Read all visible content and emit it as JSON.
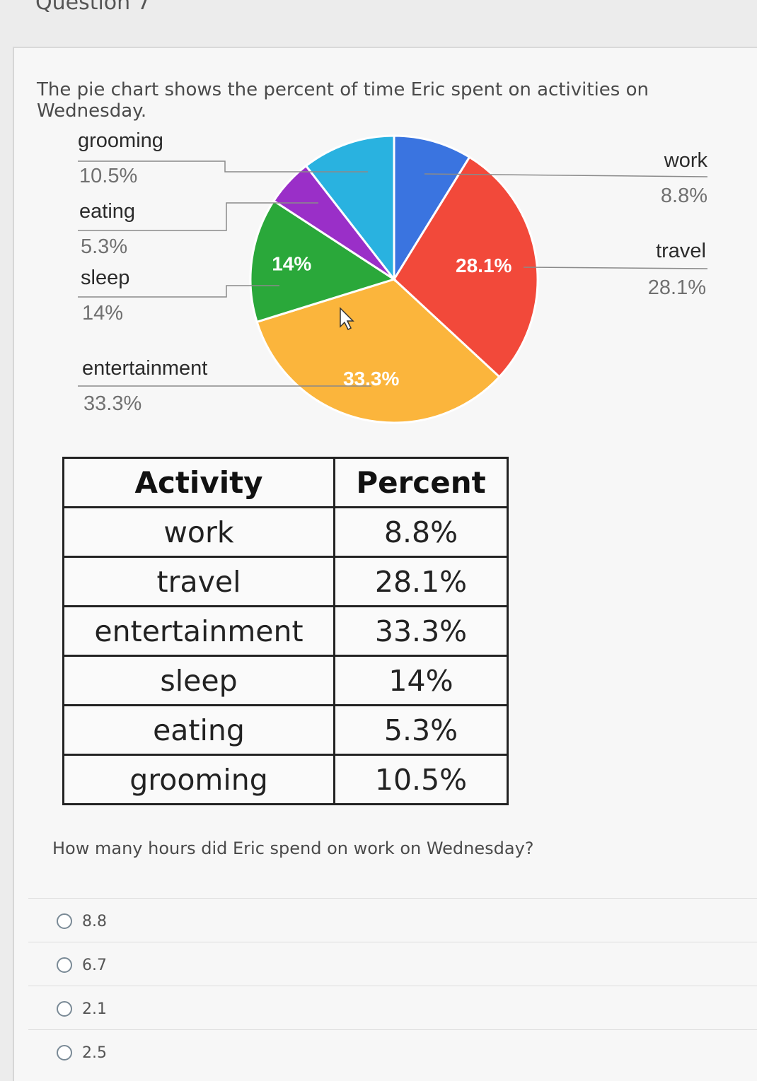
{
  "question_header": "Question 7",
  "prompt": "The pie chart shows the percent of time Eric spent on activities on Wednesday.",
  "chart_data": {
    "type": "pie",
    "slices": [
      {
        "name": "work",
        "value": 8.8,
        "label": "8.8%",
        "color": "#3a74e0"
      },
      {
        "name": "travel",
        "value": 28.1,
        "label": "28.1%",
        "color": "#f2493a"
      },
      {
        "name": "entertainment",
        "value": 33.3,
        "label": "33.3%",
        "color": "#fbb53c"
      },
      {
        "name": "sleep",
        "value": 14,
        "label": "14%",
        "color": "#2aa83a"
      },
      {
        "name": "eating",
        "value": 5.3,
        "label": "5.3%",
        "color": "#9a2fc8"
      },
      {
        "name": "grooming",
        "value": 10.5,
        "label": "10.5%",
        "color": "#29b2e0"
      }
    ],
    "inner_labels": [
      "28.1%",
      "33.3%",
      "14%"
    ],
    "legend": {
      "left": [
        {
          "name": "grooming",
          "value": "10.5%"
        },
        {
          "name": "eating",
          "value": "5.3%"
        },
        {
          "name": "sleep",
          "value": "14%"
        },
        {
          "name": "entertainment",
          "value": "33.3%"
        }
      ],
      "right": [
        {
          "name": "work",
          "value": "8.8%"
        },
        {
          "name": "travel",
          "value": "28.1%"
        }
      ]
    }
  },
  "table": {
    "headers": [
      "Activity",
      "Percent"
    ],
    "rows": [
      [
        "work",
        "8.8%"
      ],
      [
        "travel",
        "28.1%"
      ],
      [
        "entertainment",
        "33.3%"
      ],
      [
        "sleep",
        "14%"
      ],
      [
        "eating",
        "5.3%"
      ],
      [
        "grooming",
        "10.5%"
      ]
    ]
  },
  "question": "How many hours did Eric spend on work on Wednesday?",
  "options": [
    "8.8",
    "6.7",
    "2.1",
    "2.5"
  ]
}
